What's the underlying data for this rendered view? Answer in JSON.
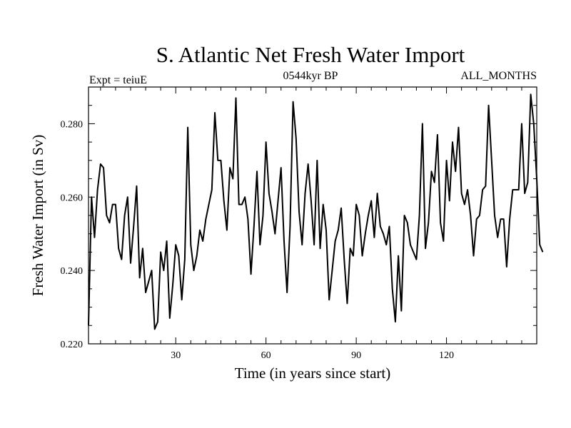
{
  "chart_data": {
    "type": "line",
    "title": "S. Atlantic Net Fresh Water Import",
    "subtitle_left": "Expt = teiuE",
    "subtitle_center": "0544kyr BP",
    "subtitle_right": "ALL_MONTHS",
    "xlabel": "Time (in years since start)",
    "ylabel": "Fresh Water Import (in Sv)",
    "xlim": [
      1,
      150
    ],
    "ylim": [
      0.22,
      0.29
    ],
    "x_major_ticks": [
      30,
      60,
      90,
      120
    ],
    "x_tick_labels": [
      "30",
      "60",
      "90",
      "120"
    ],
    "y_major_ticks": [
      0.22,
      0.24,
      0.26,
      0.28
    ],
    "y_tick_labels": [
      "0.220",
      "0.240",
      "0.260",
      "0.280"
    ],
    "grid": false,
    "series": [
      {
        "name": "S. Atlantic Net Fresh Water Import",
        "x_start": 1,
        "x_step": 1,
        "values": [
          0.225,
          0.26,
          0.249,
          0.262,
          0.269,
          0.268,
          0.255,
          0.253,
          0.258,
          0.258,
          0.246,
          0.243,
          0.255,
          0.26,
          0.242,
          0.252,
          0.263,
          0.238,
          0.246,
          0.234,
          0.237,
          0.24,
          0.224,
          0.226,
          0.245,
          0.24,
          0.248,
          0.227,
          0.236,
          0.247,
          0.244,
          0.232,
          0.243,
          0.279,
          0.247,
          0.24,
          0.244,
          0.251,
          0.248,
          0.254,
          0.258,
          0.262,
          0.283,
          0.27,
          0.27,
          0.259,
          0.251,
          0.268,
          0.265,
          0.287,
          0.258,
          0.258,
          0.26,
          0.254,
          0.239,
          0.252,
          0.267,
          0.247,
          0.255,
          0.275,
          0.261,
          0.256,
          0.25,
          0.259,
          0.268,
          0.248,
          0.234,
          0.252,
          0.286,
          0.276,
          0.256,
          0.247,
          0.261,
          0.269,
          0.259,
          0.247,
          0.27,
          0.246,
          0.258,
          0.251,
          0.232,
          0.24,
          0.248,
          0.251,
          0.257,
          0.243,
          0.231,
          0.246,
          0.244,
          0.258,
          0.255,
          0.244,
          0.25,
          0.255,
          0.259,
          0.249,
          0.261,
          0.252,
          0.25,
          0.247,
          0.252,
          0.235,
          0.226,
          0.244,
          0.229,
          0.255,
          0.253,
          0.247,
          0.245,
          0.243,
          0.255,
          0.28,
          0.246,
          0.253,
          0.267,
          0.264,
          0.277,
          0.253,
          0.248,
          0.27,
          0.259,
          0.275,
          0.267,
          0.279,
          0.261,
          0.258,
          0.262,
          0.255,
          0.244,
          0.254,
          0.255,
          0.262,
          0.263,
          0.285,
          0.27,
          0.255,
          0.249,
          0.254,
          0.254,
          0.241,
          0.254,
          0.262,
          0.262,
          0.262,
          0.28,
          0.261,
          0.264,
          0.288,
          0.28,
          0.265,
          0.247,
          0.245
        ]
      }
    ]
  }
}
